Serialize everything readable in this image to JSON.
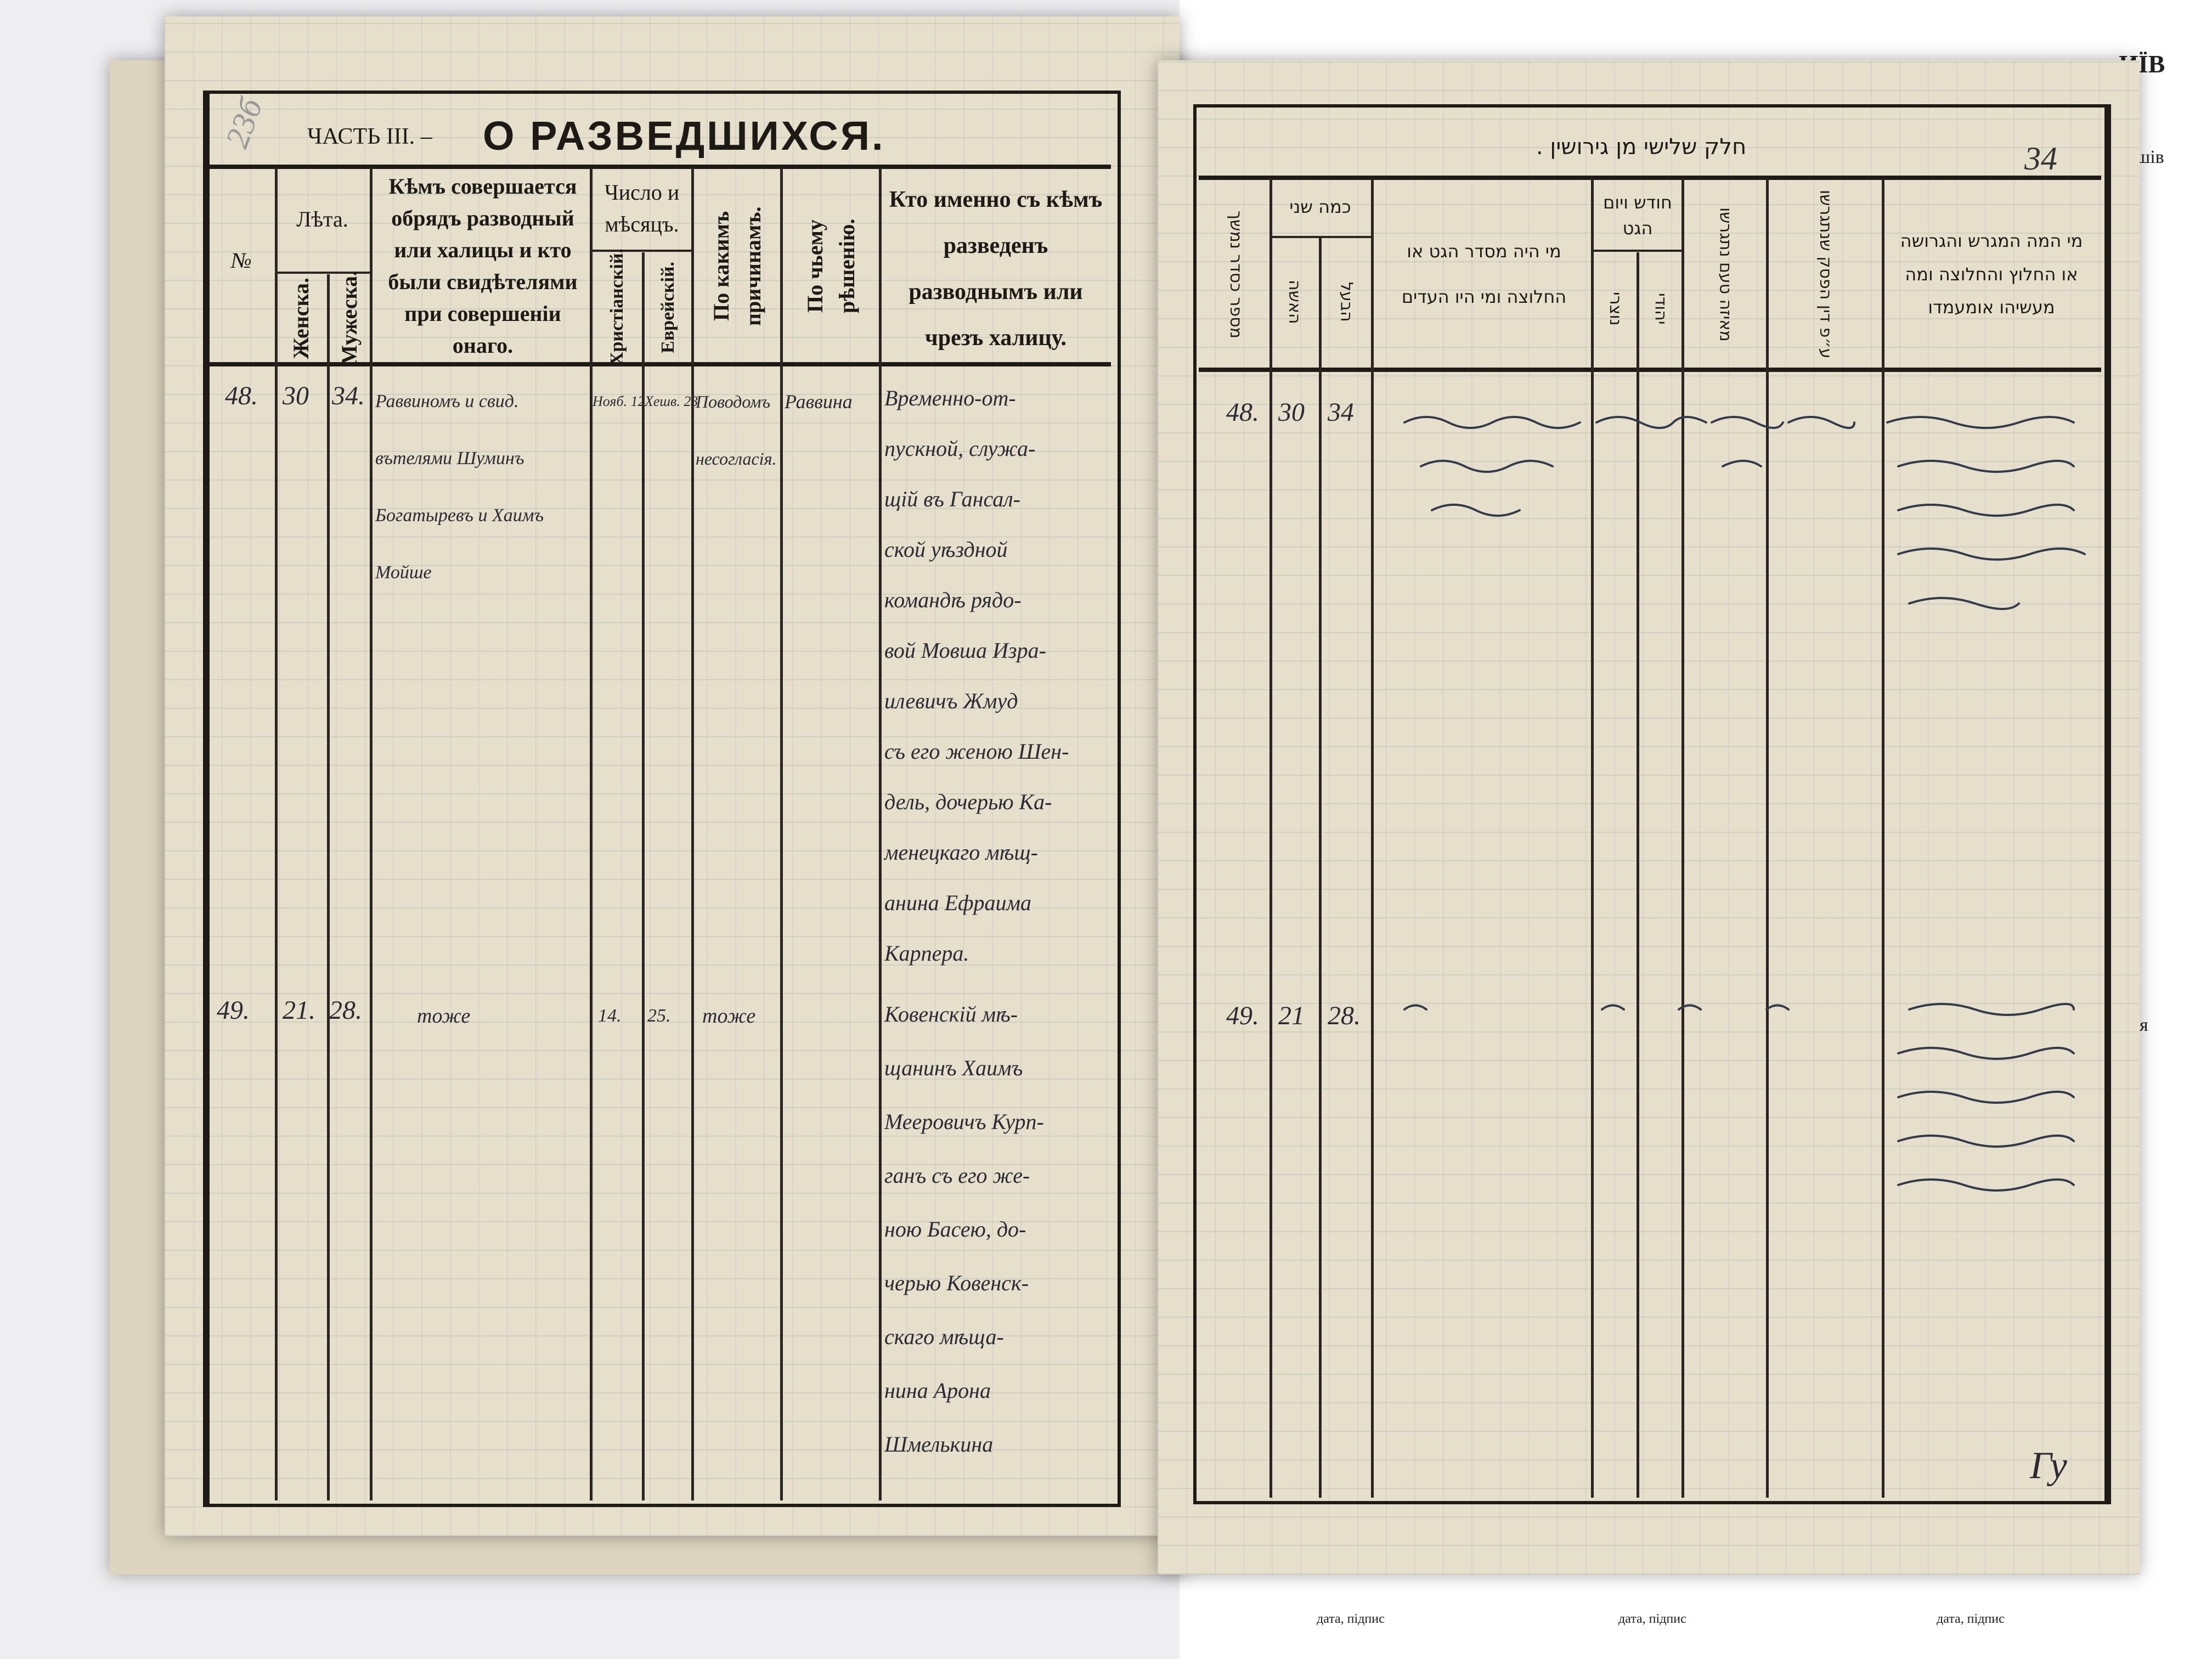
{
  "left_page": {
    "folio_mark": "23б",
    "part_label": "ЧАСТЬ III. –",
    "title": "О РАЗВЕДШИХСЯ.",
    "columns": {
      "number": "№",
      "years": "Лѣта.",
      "female": "Женска.",
      "male": "Мужеска.",
      "officiant": "Кѣмъ совершается обрядъ разводный или халицы и кто были свидѣтелями при совершеніи онаго.",
      "date": "Число и мѣсяцъ.",
      "christian": "Христіанскій.",
      "jewish": "Еврейскій.",
      "reasons": "По какимъ причинамъ.",
      "decision": "По чьему рѣшенію.",
      "who": "Кто именно съ кѣмъ разведенъ разводнымъ или чрезъ халицу."
    },
    "entries": [
      {
        "number": "48.",
        "female_age": "30",
        "male_age": "34.",
        "officiant": "Раввиномъ и свид.\nвътелями Шуминъ\nБогатыревъ и Хаимъ\nМойше",
        "christian_date": "Нояб. 12",
        "jewish_date": "Хешв. 23",
        "reason": "Поводомъ\nнесогласія.",
        "decision": "Раввина",
        "who": "Временно-от-\nпускной, служа-\nщій въ Гансал-\nской уѣздной\nкомандѣ рядо-\nвой Мовша Изра-\nилевичъ Жмуд\nсъ его женою Шен-\nдель, дочерью Ка-\nменецкаго мѣщ-\nанина Ефраима\nКарпера."
      },
      {
        "number": "49.",
        "female_age": "21.",
        "male_age": "28.",
        "officiant": "тоже",
        "christian_date": "14.",
        "jewish_date": "25.",
        "reason": "тоже",
        "decision": "",
        "who": "Ковенскій мѣ-\nщанинъ Хаимъ\nМееровичъ Курп-\nганъ съ его же-\nною Басею, до-\nчерью Ковенск-\nскаго мѣща-\nнина Арона\nШмелькина"
      }
    ]
  },
  "right_page": {
    "title": "חלק שלישי מן גירושין .",
    "page_number": "34",
    "columns": {
      "number": "מספר כסדר נמשך",
      "years": "כמה שני",
      "wife": "האשה",
      "husband": "הבעל",
      "officiant": "מי היה מסדר הגט או החלוצה ומי היו העדים",
      "date": "חודש ויום הגט",
      "christian": "נוצרי",
      "jewish": "יהודי",
      "reason": "מאיזה טעם נתגרשו",
      "ruling": "ע״פ דין הפסק שנתגרשו",
      "who": "מי המה המגרש והגרושה או החלוץ והחלוצה ומה מעשיהו אומעמדו"
    },
    "entries": [
      {
        "number": "48.",
        "wife_age": "30",
        "husband_age": "34"
      },
      {
        "number": "49.",
        "wife_age": "21",
        "husband_age": "28."
      }
    ],
    "signature": "Гу"
  },
  "background_sheet": {
    "heading_fragment": "ИЇВ",
    "line_fragment": "кушів",
    "side_fragment": "я",
    "footer_labels": [
      "дата, підпис",
      "дата, підпис",
      "дата, підпис"
    ]
  }
}
